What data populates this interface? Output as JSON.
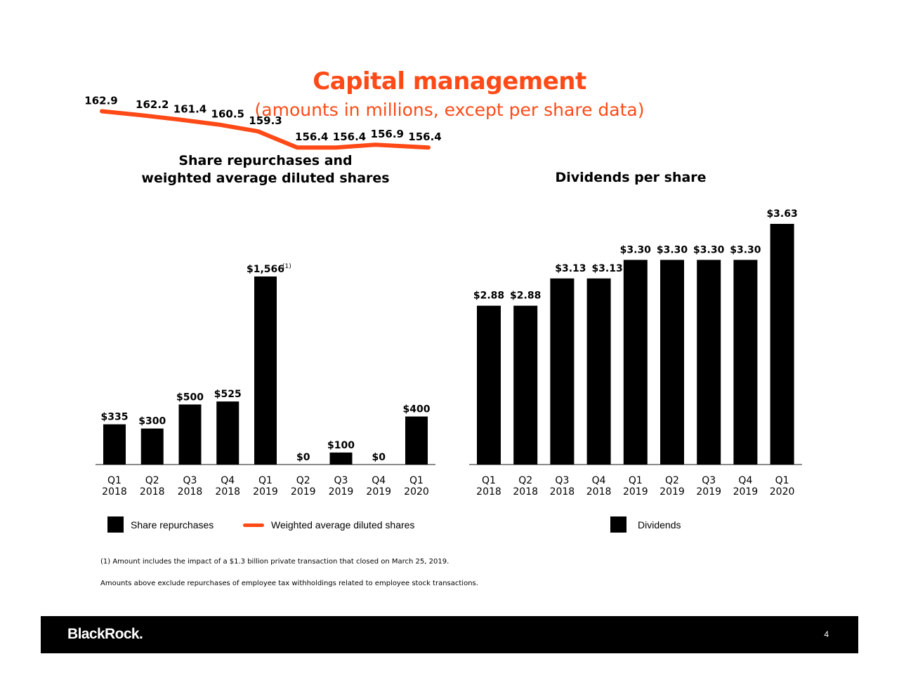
{
  "header": {
    "title": "Capital management",
    "subtitle": "(amounts in millions, except per share data)"
  },
  "colors": {
    "accent": "#ff4a17",
    "bar": "#000000",
    "axis": "#8c8c8c"
  },
  "chart_data": [
    {
      "type": "bar",
      "title_line1": "Share repurchases and",
      "title_line2": "weighted average diluted shares",
      "categories": [
        "Q1 2018",
        "Q2 2018",
        "Q3 2018",
        "Q4 2018",
        "Q1 2019",
        "Q2 2019",
        "Q3 2019",
        "Q4 2019",
        "Q1 2020"
      ],
      "category_lines": [
        [
          "Q1",
          "2018"
        ],
        [
          "Q2",
          "2018"
        ],
        [
          "Q3",
          "2018"
        ],
        [
          "Q4",
          "2018"
        ],
        [
          "Q1",
          "2019"
        ],
        [
          "Q2",
          "2019"
        ],
        [
          "Q3",
          "2019"
        ],
        [
          "Q4",
          "2019"
        ],
        [
          "Q1",
          "2020"
        ]
      ],
      "series": [
        {
          "name": "Share repurchases",
          "kind": "bar",
          "values": [
            335,
            300,
            500,
            525,
            1566,
            0,
            100,
            0,
            400
          ],
          "labels": [
            "$335",
            "$300",
            "$500",
            "$525",
            "$1,566",
            "$0",
            "$100",
            "$0",
            "$400"
          ],
          "superscript": [
            "",
            "",
            "",
            "",
            "(1)",
            "",
            "",
            "",
            ""
          ]
        },
        {
          "name": "Weighted average diluted shares",
          "kind": "line",
          "values": [
            162.9,
            162.2,
            161.4,
            160.5,
            159.3,
            156.4,
            156.4,
            156.9,
            156.4
          ],
          "labels": [
            "162.9",
            "162.2",
            "161.4",
            "160.5",
            "159.3",
            "156.4",
            "156.4",
            "156.9",
            "156.4"
          ]
        }
      ]
    },
    {
      "type": "bar",
      "title": "Dividends per share",
      "categories": [
        "Q1 2018",
        "Q2 2018",
        "Q3 2018",
        "Q4 2018",
        "Q1 2019",
        "Q2 2019",
        "Q3 2019",
        "Q4 2019",
        "Q1 2020"
      ],
      "category_lines": [
        [
          "Q1",
          "2018"
        ],
        [
          "Q2",
          "2018"
        ],
        [
          "Q3",
          "2018"
        ],
        [
          "Q4",
          "2018"
        ],
        [
          "Q1",
          "2019"
        ],
        [
          "Q2",
          "2019"
        ],
        [
          "Q3",
          "2019"
        ],
        [
          "Q4",
          "2019"
        ],
        [
          "Q1",
          "2020"
        ]
      ],
      "series": [
        {
          "name": "Dividends",
          "values": [
            2.88,
            2.88,
            3.13,
            3.13,
            3.3,
            3.3,
            3.3,
            3.3,
            3.63
          ],
          "labels": [
            "$2.88",
            "$2.88",
            "$3.13",
            "$3.13",
            "$3.30",
            "$3.30",
            "$3.30",
            "$3.30",
            "$3.63"
          ]
        }
      ]
    }
  ],
  "legend": {
    "share_repurchases": "Share repurchases",
    "weighted_shares": "Weighted average diluted shares",
    "dividends": "Dividends"
  },
  "footnotes": {
    "note1": "(1)  Amount includes the impact of a $1.3 billion private transaction that closed on March 25, 2019.",
    "note2": "Amounts above exclude repurchases of employee tax withholdings related to employee stock transactions."
  },
  "footer": {
    "logo": "BlackRock.",
    "page_number": "4"
  }
}
